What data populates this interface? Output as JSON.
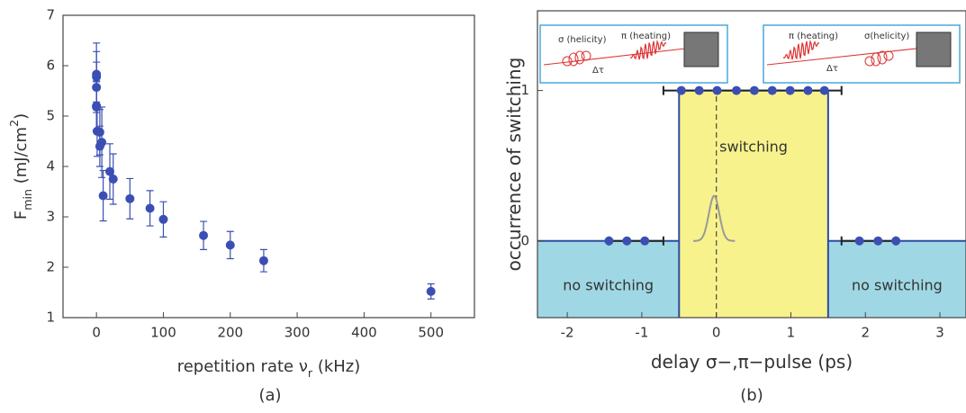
{
  "chart_data": [
    {
      "type": "scatter",
      "color": "#3b4fb3",
      "xlabel": [
        {
          "text": "repetition rate ν"
        },
        {
          "text": "r",
          "sub": true
        },
        {
          "text": " (kHz)"
        }
      ],
      "ylabel": [
        {
          "text": "F"
        },
        {
          "text": "min",
          "sub": true
        },
        {
          "text": " (mJ/cm"
        },
        {
          "text": "2",
          "sup": true
        },
        {
          "text": ")"
        }
      ],
      "caption": "(a)",
      "xlim": [
        -50,
        565
      ],
      "ylim": [
        1,
        7
      ],
      "xticks": [
        0,
        100,
        200,
        300,
        400,
        500
      ],
      "yticks": [
        1,
        2,
        3,
        4,
        5,
        6,
        7
      ],
      "series": [
        {
          "x": [
            0,
            0,
            0,
            0,
            0,
            1,
            5,
            5,
            8,
            10,
            20,
            25,
            50,
            80,
            100,
            160,
            200,
            250,
            500
          ],
          "values": [
            5.83,
            5.78,
            5.57,
            5.2,
            5.18,
            4.7,
            4.68,
            4.4,
            4.48,
            3.42,
            3.9,
            3.75,
            3.36,
            3.17,
            2.95,
            2.63,
            2.44,
            2.13,
            1.52
          ],
          "errors": [
            0.62,
            0.5,
            0.5,
            0.5,
            0.5,
            0.5,
            0.45,
            0.4,
            0.7,
            0.5,
            0.55,
            0.5,
            0.4,
            0.35,
            0.35,
            0.28,
            0.27,
            0.22,
            0.15
          ]
        }
      ]
    },
    {
      "type": "scatter",
      "color": "#3b4fb3",
      "xlabel": [
        {
          "text": "delay σ−,π−pulse (ps)"
        }
      ],
      "ylabel": [
        {
          "text": "occurrence of switching"
        }
      ],
      "caption": "(b)",
      "xlim": [
        -2.4,
        3.35
      ],
      "ylim": [
        -0.51,
        1.53
      ],
      "xticks": [
        -2,
        -1,
        0,
        1,
        2,
        3
      ],
      "yticks": [
        0,
        1
      ],
      "regions": [
        {
          "x": [
            -2.4,
            -0.5
          ],
          "y": [
            -0.51,
            0
          ],
          "color": "#9fd8e4",
          "label": "no switching"
        },
        {
          "x": [
            -0.5,
            1.5
          ],
          "y": [
            -0.51,
            1
          ],
          "color": "#f8f28c",
          "label": "switching"
        },
        {
          "x": [
            1.5,
            3.35
          ],
          "y": [
            -0.51,
            0
          ],
          "color": "#9fd8e4",
          "label": "no switching"
        }
      ],
      "vline": 0,
      "gaussian": {
        "center": -0.03,
        "amplitude": 0.3,
        "sigma": 0.07
      },
      "series": [
        {
          "x": [
            -1.44,
            -1.2,
            -0.96
          ],
          "values": [
            0,
            0,
            0
          ],
          "xerr_range": [
            -1.44,
            -0.71
          ]
        },
        {
          "x": [
            -0.47,
            -0.23,
            0.01,
            0.27,
            0.51,
            0.75,
            0.99,
            1.23,
            1.45
          ],
          "values": [
            1,
            1,
            1,
            1,
            1,
            1,
            1,
            1,
            1
          ],
          "xerr_range": [
            -0.71,
            1.68
          ]
        },
        {
          "x": [
            1.92,
            2.17,
            2.41
          ],
          "values": [
            0,
            0,
            0
          ],
          "xerr_range": [
            1.68,
            2.41
          ]
        }
      ],
      "insets": [
        [
          "σ (helicity)",
          "π (heating)",
          "Δτ"
        ],
        [
          "π (heating)",
          "σ(helicity)",
          "Δτ"
        ]
      ]
    }
  ]
}
